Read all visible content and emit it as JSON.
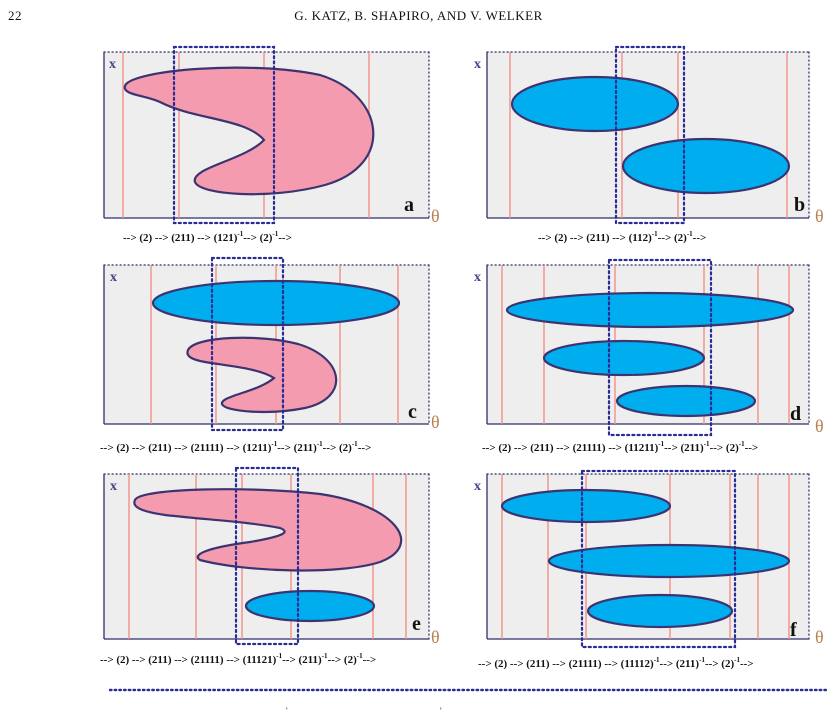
{
  "header": {
    "page_number": "22",
    "running_title": "G. KATZ, B. SHAPIRO, AND V. WELKER"
  },
  "figure": {
    "axis_y_label": "x",
    "axis_x_label": "θ",
    "panels": [
      {
        "id": "a",
        "label": "a",
        "shapes": [
          "pink-crescent"
        ]
      },
      {
        "id": "b",
        "label": "b",
        "shapes": [
          "blue-ellipse",
          "blue-ellipse"
        ]
      },
      {
        "id": "c",
        "label": "c",
        "shapes": [
          "blue-ellipse",
          "pink-crescent"
        ]
      },
      {
        "id": "d",
        "label": "d",
        "shapes": [
          "blue-ellipse",
          "blue-ellipse",
          "blue-ellipse"
        ]
      },
      {
        "id": "e",
        "label": "e",
        "shapes": [
          "pink-crescent",
          "blue-ellipse"
        ]
      },
      {
        "id": "f",
        "label": "f",
        "shapes": [
          "blue-ellipse",
          "blue-ellipse",
          "blue-ellipse"
        ]
      }
    ],
    "captions": {
      "a": [
        {
          "t": "--> (2) --> (211) --> (121)"
        },
        {
          "t": "-1",
          "sup": true
        },
        {
          "t": "--> (2)"
        },
        {
          "t": "-1",
          "sup": true
        },
        {
          "t": "-->"
        }
      ],
      "b": [
        {
          "t": "--> (2) --> (211) --> (112)"
        },
        {
          "t": "-1",
          "sup": true
        },
        {
          "t": "--> (2)"
        },
        {
          "t": "-1",
          "sup": true
        },
        {
          "t": "-->"
        }
      ],
      "c": [
        {
          "t": "--> (2) --> (211) --> (21111)  --> (1211)"
        },
        {
          "t": "-1",
          "sup": true
        },
        {
          "t": "--> (211)"
        },
        {
          "t": "-1",
          "sup": true
        },
        {
          "t": "--> (2)"
        },
        {
          "t": "-1",
          "sup": true
        },
        {
          "t": "-->"
        }
      ],
      "d": [
        {
          "t": "--> (2) --> (211) --> (21111)  --> (11211)"
        },
        {
          "t": "-1",
          "sup": true
        },
        {
          "t": "--> (211)"
        },
        {
          "t": "-1",
          "sup": true
        },
        {
          "t": "--> (2)"
        },
        {
          "t": "-1",
          "sup": true
        },
        {
          "t": "-->"
        }
      ],
      "e": [
        {
          "t": "--> (2) --> (211) --> (21111)  --> (11121)"
        },
        {
          "t": "-1",
          "sup": true
        },
        {
          "t": "--> (211)"
        },
        {
          "t": "-1",
          "sup": true
        },
        {
          "t": "--> (2)"
        },
        {
          "t": "-1",
          "sup": true
        },
        {
          "t": "-->"
        }
      ],
      "f": [
        {
          "t": "--> (2) --> (211) --> (21111)  --> (11112)"
        },
        {
          "t": "-1",
          "sup": true
        },
        {
          "t": "--> (211)"
        },
        {
          "t": "-1",
          "sup": true
        },
        {
          "t": "--> (2)"
        },
        {
          "t": "-1",
          "sup": true
        },
        {
          "t": "-->"
        }
      ]
    }
  },
  "colors": {
    "pink_fill": "#f59bb0",
    "blue_fill": "#00aeef",
    "outline": "#3c3470",
    "guide_lines": "#f08f86",
    "window": "#2b2b95",
    "panel_bg": "#eeeeee"
  }
}
